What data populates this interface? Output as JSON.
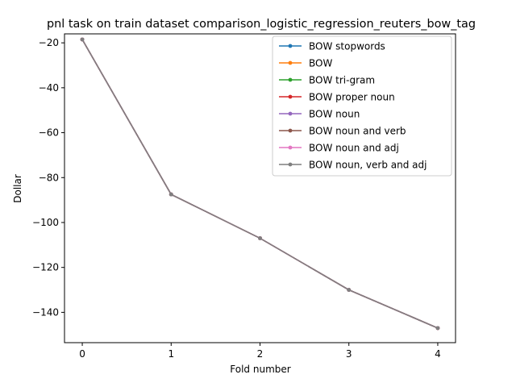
{
  "chart_data": {
    "type": "line",
    "title": "pnl task on train dataset comparison_logistic_regression_reuters_bow_tag",
    "xlabel": "Fold number",
    "ylabel": "Dollar",
    "x": [
      0,
      1,
      2,
      3,
      4
    ],
    "xlim": [
      -0.2,
      4.2
    ],
    "ylim": [
      -153.5,
      -16.0
    ],
    "xticks": [
      "0",
      "1",
      "2",
      "3",
      "4"
    ],
    "yticks": [
      "-20",
      "-40",
      "-60",
      "-80",
      "-100",
      "-120",
      "-140"
    ],
    "legend_position": "top-right",
    "grid": false,
    "series": [
      {
        "name": "BOW stopwords",
        "color": "#1f77b4",
        "values": [
          -18.5,
          -87.5,
          -107.0,
          -130.0,
          -147.0
        ]
      },
      {
        "name": "BOW",
        "color": "#ff7f0e",
        "values": [
          -18.5,
          -87.5,
          -107.0,
          -130.0,
          -147.0
        ]
      },
      {
        "name": "BOW tri-gram",
        "color": "#2ca02c",
        "values": [
          -18.5,
          -87.5,
          -107.0,
          -130.0,
          -147.0
        ]
      },
      {
        "name": "BOW proper noun",
        "color": "#d62728",
        "values": [
          -18.5,
          -87.5,
          -107.0,
          -130.0,
          -147.0
        ]
      },
      {
        "name": "BOW noun",
        "color": "#9467bd",
        "values": [
          -18.5,
          -87.5,
          -107.0,
          -130.0,
          -147.0
        ]
      },
      {
        "name": "BOW noun and verb",
        "color": "#8c564b",
        "values": [
          -18.5,
          -87.5,
          -107.0,
          -130.0,
          -147.0
        ]
      },
      {
        "name": "BOW noun and adj",
        "color": "#e377c2",
        "values": [
          -18.5,
          -87.5,
          -107.0,
          -130.0,
          -147.0
        ]
      },
      {
        "name": "BOW noun, verb and adj",
        "color": "#7f7f7f",
        "values": [
          -18.5,
          -87.5,
          -107.0,
          -130.0,
          -147.0
        ]
      }
    ]
  }
}
